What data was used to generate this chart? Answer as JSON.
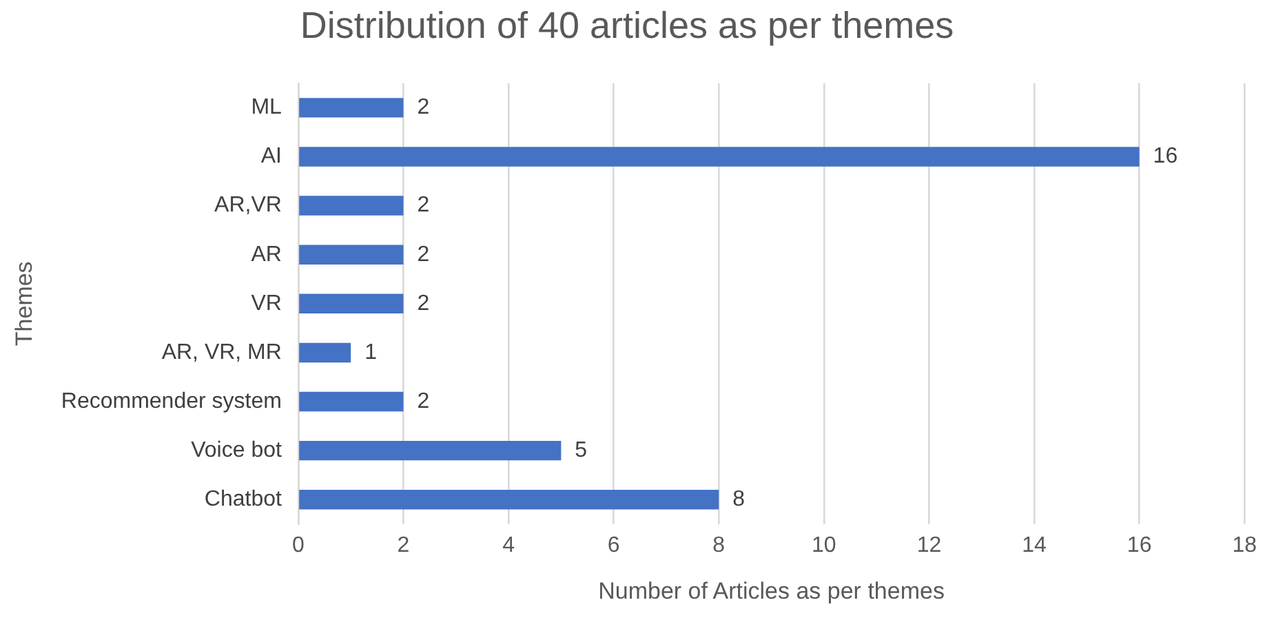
{
  "chart_data": {
    "type": "bar",
    "orientation": "horizontal",
    "title": "Distribution of 40 articles as per themes",
    "xlabel": "Number of Articles as per themes",
    "ylabel": "Themes",
    "categories": [
      "ML",
      "AI",
      "AR,VR",
      "AR",
      "VR",
      "AR, VR, MR",
      "Recommender system",
      "Voice bot",
      "Chatbot"
    ],
    "values": [
      2,
      16,
      2,
      2,
      2,
      1,
      2,
      5,
      8
    ],
    "color": "#4472c4",
    "xlim": [
      0,
      18
    ],
    "xticks": [
      0,
      2,
      4,
      6,
      8,
      10,
      12,
      14,
      16,
      18
    ],
    "grid": "x",
    "legend": false,
    "data_labels": true
  }
}
